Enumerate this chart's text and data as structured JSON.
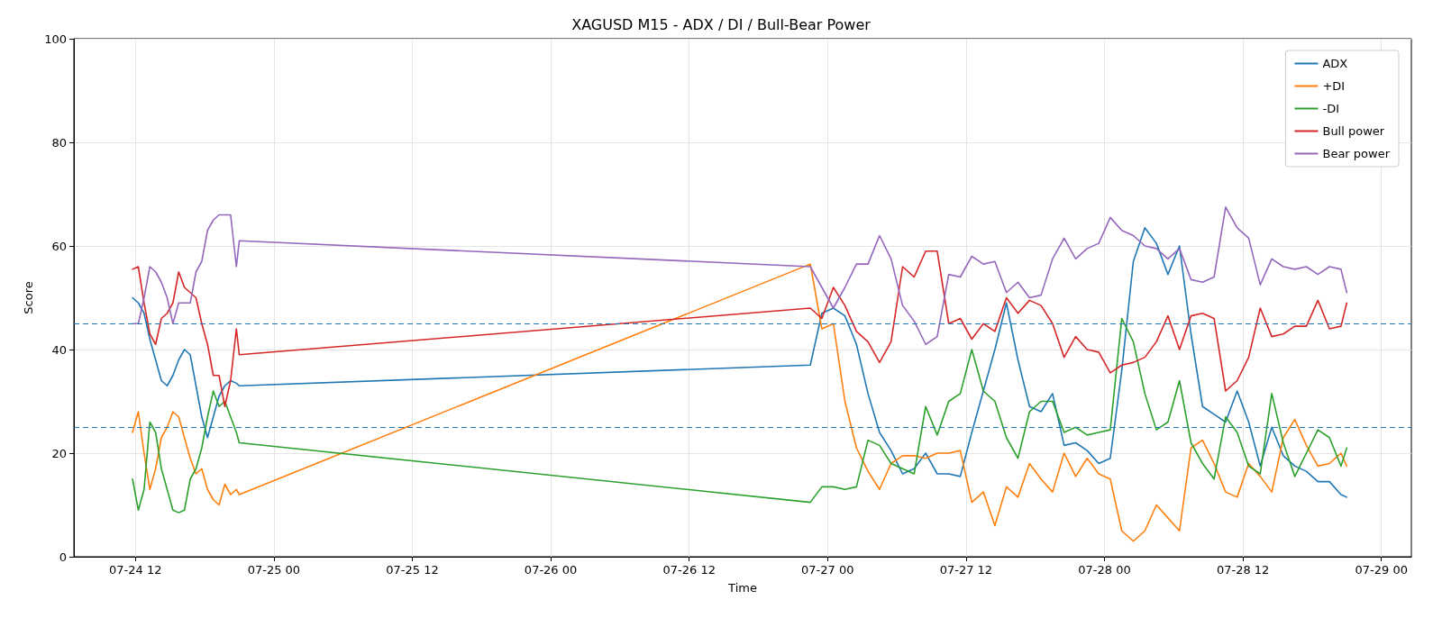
{
  "chart_data": {
    "type": "line",
    "title": "XAGUSD M15 - ADX / DI / Bull-Bear Power",
    "xlabel": "Time",
    "ylabel": "Score",
    "x": [
      "--07-24T11:45",
      "--07-24T12:15",
      "--07-24T12:45",
      "--07-24T13:15",
      "--07-24T13:45",
      "--07-24T14:15",
      "--07-24T14:45",
      "--07-24T15:15",
      "--07-24T15:45",
      "--07-24T16:15",
      "--07-24T16:45",
      "--07-24T17:15",
      "--07-24T17:45",
      "--07-24T18:15",
      "--07-24T18:45",
      "--07-24T19:15",
      "--07-24T19:45",
      "--07-24T20:15",
      "--07-24T20:45",
      "--07-24T21:00",
      "--07-26T22:30",
      "--07-26T23:30",
      "--07-27T00:30",
      "--07-27T01:30",
      "--07-27T02:30",
      "--07-27T03:30",
      "--07-27T04:30",
      "--07-27T05:30",
      "--07-27T06:30",
      "--07-27T07:30",
      "--07-27T08:30",
      "--07-27T09:30",
      "--07-27T10:30",
      "--07-27T11:30",
      "--07-27T12:30",
      "--07-27T13:30",
      "--07-27T14:30",
      "--07-27T15:30",
      "--07-27T16:30",
      "--07-27T17:30",
      "--07-27T18:30",
      "--07-27T19:30",
      "--07-27T20:30",
      "--07-27T21:30",
      "--07-27T22:30",
      "--07-27T23:30",
      "--07-28T00:30",
      "--07-28T01:30",
      "--07-28T02:30",
      "--07-28T03:30",
      "--07-28T04:30",
      "--07-28T05:30",
      "--07-28T06:30",
      "--07-28T07:30",
      "--07-28T08:30",
      "--07-28T09:30",
      "--07-28T10:30",
      "--07-28T11:30",
      "--07-28T12:30",
      "--07-28T13:30",
      "--07-28T14:30",
      "--07-28T15:30",
      "--07-28T16:30",
      "--07-28T17:30",
      "--07-28T18:30",
      "--07-28T19:30",
      "--07-28T20:30",
      "--07-28T21:00"
    ],
    "series": [
      {
        "name": "ADX",
        "color": "#1f77b4",
        "values": [
          50,
          49,
          47,
          42,
          38,
          34,
          33,
          35,
          38,
          40,
          39,
          33,
          27,
          23,
          27,
          31,
          33,
          34,
          33.5,
          33,
          37,
          47,
          48,
          46.5,
          41,
          31.5,
          24,
          20.5,
          16,
          17,
          20,
          16,
          16,
          15.5,
          24,
          32,
          40,
          49,
          38,
          29,
          28,
          31.5,
          21.5,
          22,
          20.5,
          18,
          19,
          36,
          57,
          63.5,
          60.5,
          54.5,
          60,
          43,
          29,
          27.5,
          26,
          32,
          26,
          17.5,
          25,
          19.5,
          17.5,
          16.5,
          14.5,
          14.5,
          12,
          11.5
        ]
      },
      {
        "name": "+DI",
        "color": "#ff7f0e",
        "values": [
          24,
          28,
          20,
          13,
          17,
          23,
          25,
          28,
          27,
          23,
          19,
          16,
          17,
          13,
          11,
          10,
          14,
          12,
          13,
          12,
          56.5,
          44,
          45,
          30,
          21,
          16.5,
          13,
          18,
          19.5,
          19.5,
          19,
          20,
          20,
          20.5,
          10.5,
          12.5,
          6,
          13.5,
          11.5,
          18,
          15,
          12.5,
          20,
          15.5,
          19,
          16,
          15,
          5,
          3,
          5,
          10,
          7.5,
          5,
          21,
          22.5,
          18,
          12.5,
          11.5,
          18,
          15.5,
          12.5,
          23,
          26.5,
          21.5,
          17.5,
          18,
          20,
          17.5
        ]
      },
      {
        "name": "-DI",
        "color": "#2ca02c",
        "values": [
          15,
          9,
          13,
          26,
          24,
          17,
          13,
          9,
          8.5,
          9,
          15,
          17,
          21,
          27,
          32,
          29,
          30,
          27,
          24,
          22,
          10.5,
          13.5,
          13.5,
          13,
          13.5,
          22.5,
          21.5,
          18,
          17,
          16,
          29,
          23.5,
          30,
          31.5,
          40,
          32,
          30,
          23,
          19,
          28,
          30,
          30,
          24,
          25,
          23.5,
          24,
          24.5,
          46,
          41.5,
          31.5,
          24.5,
          26,
          34,
          22,
          18,
          15,
          27,
          24,
          17.5,
          16,
          31.5,
          22,
          15.5,
          20,
          24.5,
          23,
          17.5,
          21
        ]
      },
      {
        "name": "Bull power",
        "color": "#d62728",
        "values": [
          55.5,
          56,
          49,
          43,
          41,
          46,
          47,
          49,
          55,
          52,
          51,
          50,
          45,
          41,
          35,
          35,
          29,
          34,
          44,
          39,
          48,
          46,
          52,
          48.5,
          43.5,
          41.5,
          37.5,
          41.5,
          56,
          54,
          59,
          59,
          45,
          46,
          42,
          45,
          43.5,
          50,
          47,
          49.5,
          48.5,
          45,
          38.5,
          42.5,
          40,
          39.5,
          35.5,
          37,
          37.5,
          38.5,
          41.5,
          46.5,
          40,
          46.5,
          47,
          46,
          32,
          34,
          38.5,
          48,
          42.5,
          43,
          44.5,
          44.5,
          49.5,
          44,
          44.5,
          49
        ]
      },
      {
        "name": "Bear power",
        "color": "#9467bd",
        "values": [
          45,
          45,
          50,
          56,
          55,
          53,
          50,
          45,
          49,
          49,
          49,
          55,
          57,
          63,
          65,
          66,
          66,
          66,
          56,
          61,
          56,
          52,
          48,
          52,
          56.5,
          56.5,
          62,
          57.5,
          48.5,
          45.5,
          41,
          42.5,
          54.5,
          54,
          58,
          56.5,
          57,
          51,
          53,
          50,
          50.5,
          57.5,
          61.5,
          57.5,
          59.5,
          60.5,
          65.5,
          63,
          62,
          60,
          59.5,
          57.5,
          59.5,
          53.5,
          53,
          54,
          67.5,
          63.5,
          61.5,
          52.5,
          57.5,
          56,
          55.5,
          56,
          54.5,
          56,
          55.5,
          51
        ]
      }
    ],
    "ref_lines": [
      {
        "axis": "y",
        "value": 25,
        "color": "#1f77b4",
        "line_style": "dashed"
      },
      {
        "axis": "y",
        "value": 45,
        "color": "#1f77b4",
        "line_style": "dashed"
      }
    ],
    "xlim": [
      "--07-24T06:40",
      "--07-29T02:36"
    ],
    "xticks": [
      {
        "value": "--07-24T12:00",
        "label": "07-24 12"
      },
      {
        "value": "--07-25T00:00",
        "label": "07-25 00"
      },
      {
        "value": "--07-25T12:00",
        "label": "07-25 12"
      },
      {
        "value": "--07-26T00:00",
        "label": "07-26 00"
      },
      {
        "value": "--07-26T12:00",
        "label": "07-26 12"
      },
      {
        "value": "--07-27T00:00",
        "label": "07-27 00"
      },
      {
        "value": "--07-27T12:00",
        "label": "07-27 12"
      },
      {
        "value": "--07-28T00:00",
        "label": "07-28 00"
      },
      {
        "value": "--07-28T12:00",
        "label": "07-28 12"
      },
      {
        "value": "--07-29T00:00",
        "label": "07-29 00"
      }
    ],
    "ylim": [
      0,
      100
    ],
    "yticks": [
      0,
      20,
      40,
      60,
      80,
      100
    ],
    "grid": true,
    "legend": "top right"
  }
}
